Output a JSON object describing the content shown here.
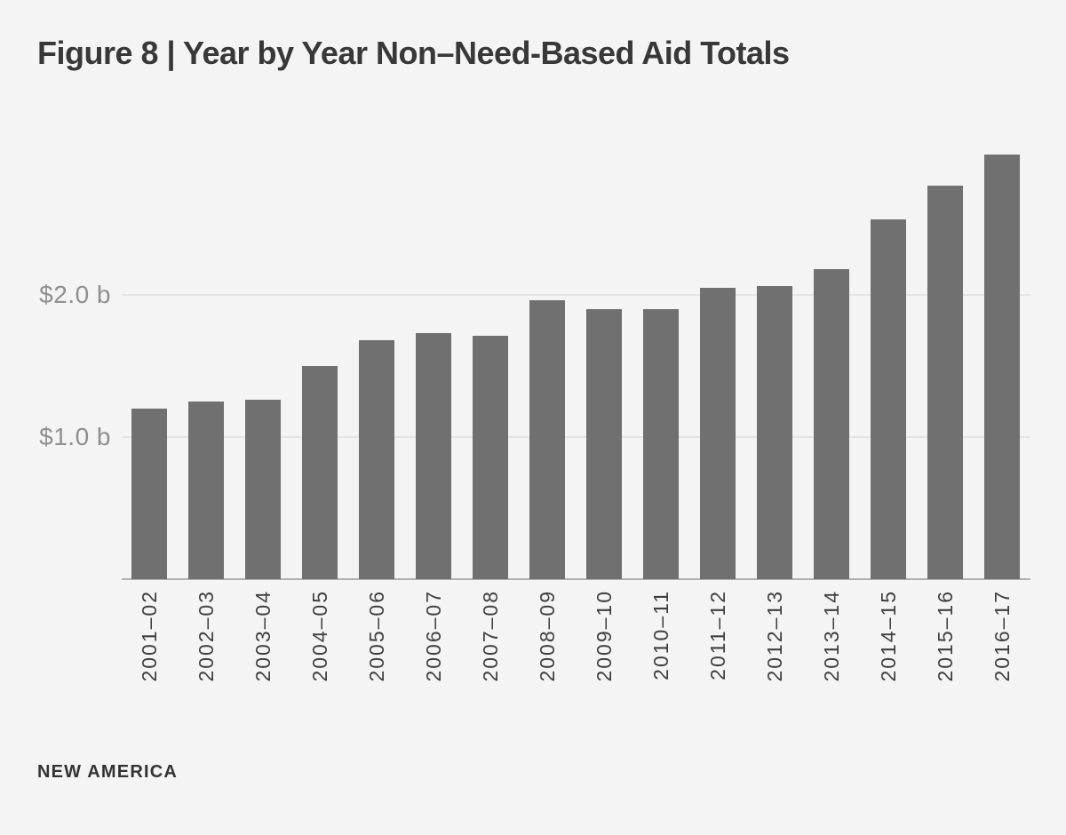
{
  "title": "Figure 8 | Year by Year Non–Need-Based Aid Totals",
  "footer": {
    "brand": "NEW AMERICA"
  },
  "colors": {
    "background": "#f4f4f4",
    "bar": "#707070",
    "gridline": "#e4e4e4",
    "axis_line": "#b0b0b0",
    "y_tick_label": "#8f8f8f",
    "x_tick_label": "#3f3f3f",
    "title_text": "#383838",
    "footer_text": "#333333"
  },
  "chart_data": {
    "type": "bar",
    "title": "Figure 8 | Year by Year Non–Need-Based Aid Totals",
    "xlabel": "",
    "ylabel": "",
    "categories": [
      "2001–02",
      "2002–03",
      "2003–04",
      "2004–05",
      "2005–06",
      "2006–07",
      "2007–08",
      "2008–09",
      "2009–10",
      "2010–11",
      "2011–12",
      "2012–13",
      "2013–14",
      "2014–15",
      "2015–16",
      "2016–17"
    ],
    "values": [
      1.2,
      1.25,
      1.26,
      1.5,
      1.68,
      1.73,
      1.71,
      1.96,
      1.9,
      1.9,
      2.05,
      2.06,
      2.18,
      2.53,
      2.77,
      2.99
    ],
    "y_ticks": [
      {
        "value": 1.0,
        "label": "$1.0 b"
      },
      {
        "value": 2.0,
        "label": "$2.0 b"
      }
    ],
    "ylim": [
      0,
      3.05
    ],
    "grid": true,
    "legend": "none",
    "bar_orientation": "vertical",
    "x_tick_rotation_degrees": 90
  }
}
